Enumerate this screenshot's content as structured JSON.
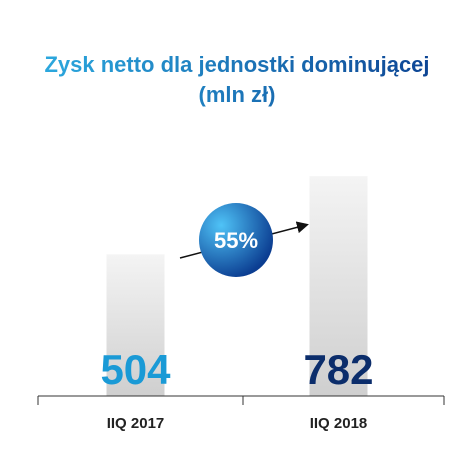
{
  "chart_data": {
    "type": "bar",
    "title_lines": [
      "Zysk netto dla jednostki dominującej",
      "(mln zł)"
    ],
    "categories": [
      "IIQ 2017",
      "IIQ 2018"
    ],
    "values": [
      504,
      782
    ],
    "value_labels": [
      "504",
      "782"
    ],
    "ylim": [
      0,
      900
    ],
    "grid": false,
    "legend": "none",
    "growth_badge": "55%",
    "colors": {
      "title_gradient_start": "#2fb3e6",
      "title_gradient_end": "#0a3a8c",
      "value_label_1": "#1a9ad6",
      "value_label_2": "#0b2d6b",
      "bar_light": "#f4f4f4",
      "bar_dark": "#cfcfcf",
      "badge_light": "#4fc3f7",
      "badge_dark": "#0b3d91",
      "axis": "#333333"
    }
  }
}
